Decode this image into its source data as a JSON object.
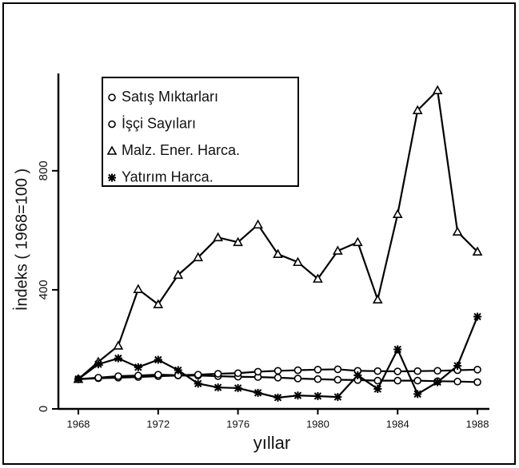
{
  "chart_data": {
    "type": "line",
    "ylabel": "İndeks ( 1968=100 )",
    "xlabel": "yıllar",
    "x": [
      1968,
      1969,
      1970,
      1971,
      1972,
      1973,
      1974,
      1975,
      1976,
      1977,
      1978,
      1979,
      1980,
      1981,
      1982,
      1983,
      1984,
      1985,
      1986,
      1987,
      1988
    ],
    "xlim": [
      1967,
      1989
    ],
    "xticks": [
      1968,
      1972,
      1976,
      1980,
      1984,
      1988
    ],
    "ylim": [
      0,
      1100
    ],
    "yticks": [
      0,
      400,
      800
    ],
    "legend": "top-left",
    "series": [
      {
        "name": "Satış Mıktarları",
        "color": "#000000",
        "marker": "circle",
        "values": [
          100,
          103,
          105,
          107,
          110,
          112,
          112,
          110,
          108,
          107,
          105,
          102,
          100,
          98,
          97,
          95,
          95,
          95,
          93,
          92,
          90
        ]
      },
      {
        "name": "İşçi Sayıları",
        "color": "#000000",
        "marker": "circle",
        "values": [
          100,
          105,
          110,
          112,
          115,
          113,
          115,
          118,
          120,
          125,
          128,
          130,
          132,
          133,
          128,
          127,
          126,
          127,
          128,
          130,
          132
        ]
      },
      {
        "name": "Malz. Ener. Harca.",
        "color": "#000000",
        "marker": "triangle",
        "values": [
          100,
          158,
          212,
          402,
          351,
          450,
          509,
          576,
          560,
          619,
          520,
          493,
          437,
          531,
          560,
          367,
          654,
          1003,
          1070,
          595,
          528
        ]
      },
      {
        "name": "Yatırım Harca.",
        "color": "#000000",
        "marker": "star",
        "values": [
          100,
          150,
          170,
          140,
          165,
          130,
          85,
          72,
          70,
          54,
          38,
          45,
          43,
          40,
          113,
          67,
          200,
          50,
          90,
          145,
          310
        ]
      }
    ]
  }
}
